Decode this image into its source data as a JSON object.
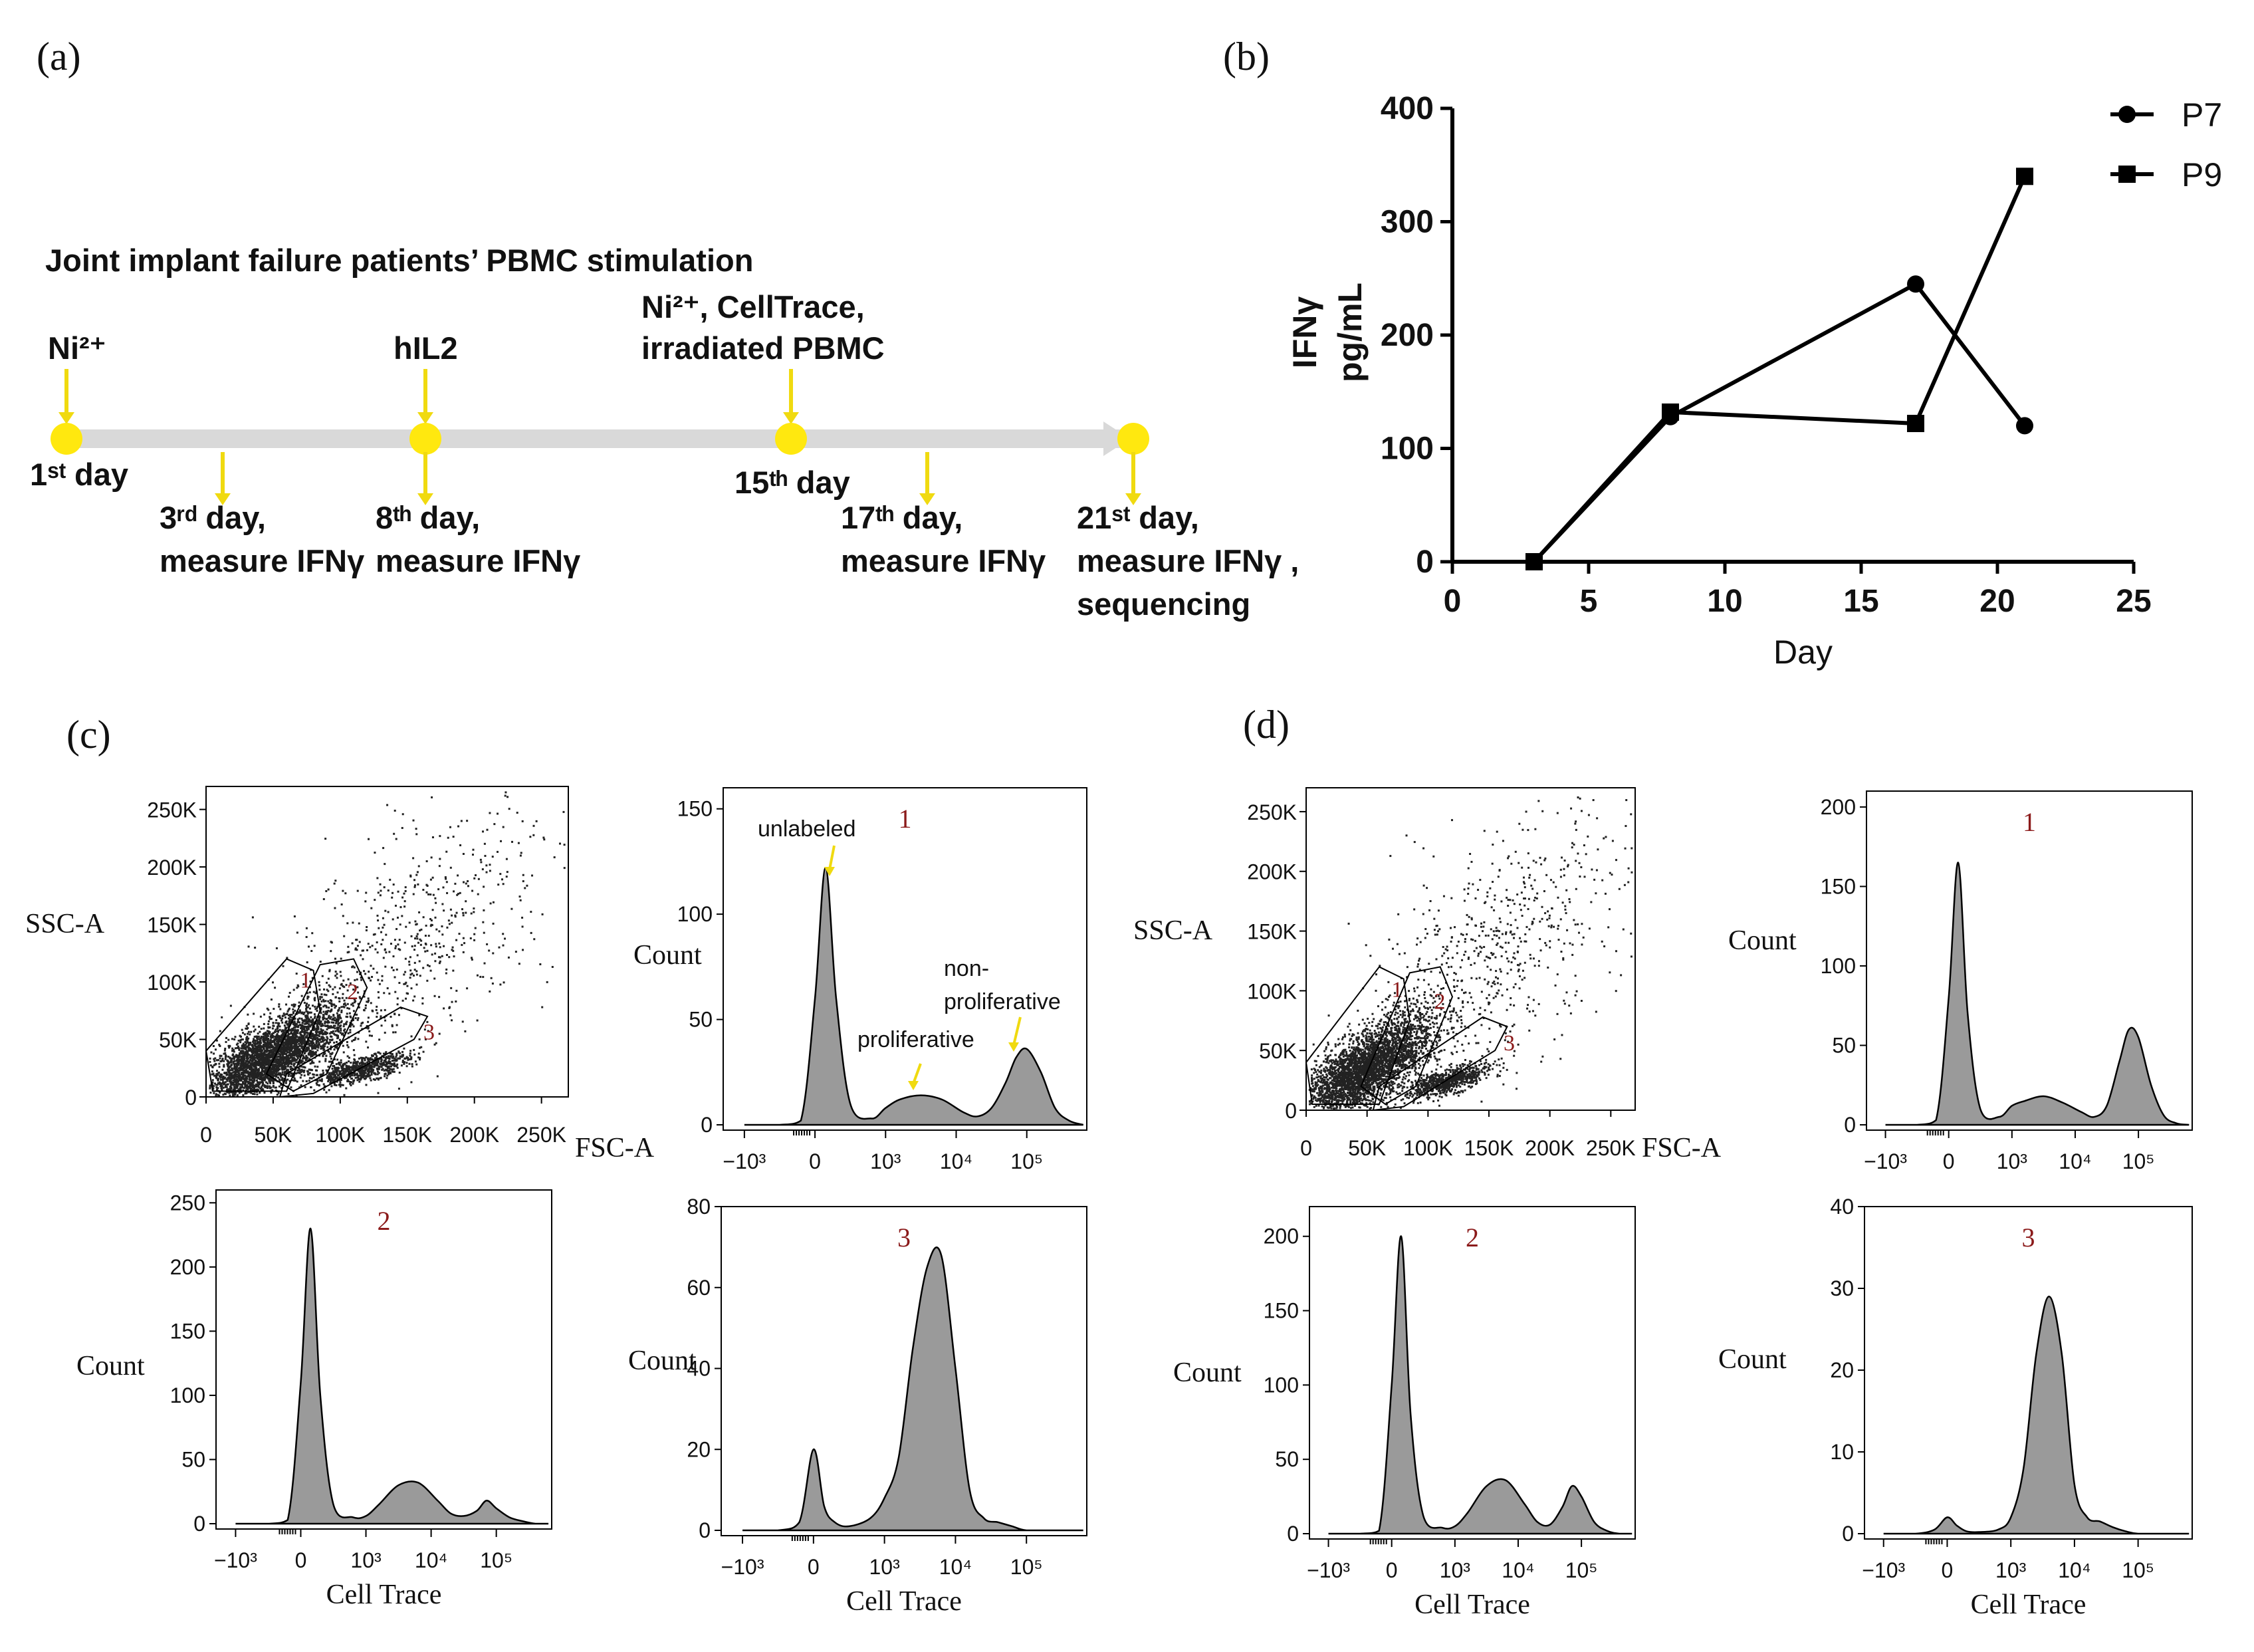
{
  "panel_labels": {
    "a": "(a)",
    "b": "(b)",
    "c": "(c)",
    "d": "(d)"
  },
  "colors": {
    "timeline_dot": "#ffe80f",
    "timeline_arrow": "#f0da10",
    "timeline_bar": "#d9d9d9",
    "hist_fill": "#9a9a9a",
    "gate_number": "#8b1a1a"
  },
  "timeline": {
    "title": "Joint implant failure patients’ PBMC stimulation",
    "events": [
      {
        "above": [
          "Ni²⁺"
        ],
        "below": [
          "1ˢᵗ day"
        ]
      },
      {
        "above": [],
        "below": [
          "3ʳᵈ day,",
          "measure IFNγ"
        ]
      },
      {
        "above": [
          "hIL2"
        ],
        "below": [
          "8ᵗʰ day,",
          "measure IFNγ"
        ]
      },
      {
        "above": [
          "Ni²⁺, CellTrace,",
          "irradiated PBMC"
        ],
        "below": [
          "15ᵗʰ day"
        ]
      },
      {
        "above": [],
        "below": [
          "17ᵗʰ day,",
          "measure IFNγ"
        ]
      },
      {
        "above": [],
        "below": [
          "21ˢᵗ day,",
          "measure IFNγ ,",
          "sequencing"
        ]
      }
    ]
  },
  "chart_data": [
    {
      "id": "b",
      "type": "line",
      "title": "",
      "xlabel": "Day",
      "ylabel": [
        "IFNγ",
        "pg/mL"
      ],
      "xlim": [
        0,
        25
      ],
      "ylim": [
        0,
        400
      ],
      "xticks": [
        0,
        5,
        10,
        15,
        20,
        25
      ],
      "yticks": [
        0,
        100,
        200,
        300,
        400
      ],
      "legend_position": "top-right",
      "series": [
        {
          "name": "P7",
          "marker": "circle",
          "x": [
            3,
            8,
            17,
            21
          ],
          "y": [
            0,
            128,
            245,
            120
          ]
        },
        {
          "name": "P9",
          "marker": "square",
          "x": [
            3,
            8,
            17,
            21
          ],
          "y": [
            0,
            132,
            122,
            340
          ]
        }
      ]
    },
    {
      "id": "c-scatter",
      "type": "scatter",
      "xlabel": "FSC-A",
      "ylabel": "SSC-A",
      "xticks": [
        "0",
        "50K",
        "100K",
        "150K",
        "200K",
        "250K"
      ],
      "yticks": [
        "0",
        "50K",
        "100K",
        "150K",
        "200K",
        "250K"
      ],
      "xlim": [
        0,
        270000
      ],
      "ylim": [
        0,
        270000
      ],
      "gates": [
        "1",
        "2",
        "3"
      ]
    },
    {
      "id": "c-hist1",
      "type": "area",
      "gate": "1",
      "ylabel": "Count",
      "xlabel": "",
      "ylim": [
        0,
        160
      ],
      "yticks": [
        0,
        50,
        100,
        150
      ],
      "xticks": [
        "−10³",
        "0",
        "10³",
        "10⁴",
        "10⁵"
      ],
      "x": [
        -1,
        -0.5,
        -0.2,
        0,
        0.15,
        0.3,
        0.5,
        0.8,
        1.0,
        1.2,
        1.5,
        1.8,
        2.1,
        2.3,
        2.5,
        2.7,
        2.85,
        3.0,
        3.2,
        3.4,
        3.6,
        3.8
      ],
      "y": [
        0,
        0,
        2,
        60,
        122,
        60,
        10,
        3,
        8,
        12,
        14,
        12,
        6,
        4,
        8,
        20,
        32,
        36,
        25,
        8,
        2,
        0
      ],
      "annotations": [
        "unlabeled",
        "proliferative",
        "non-",
        "proliferative"
      ]
    },
    {
      "id": "c-hist2",
      "type": "area",
      "gate": "2",
      "ylabel": "Count",
      "xlabel": "Cell Trace",
      "ylim": [
        0,
        260
      ],
      "yticks": [
        0,
        50,
        100,
        150,
        200,
        250
      ],
      "xticks": [
        "−10³",
        "0",
        "10³",
        "10⁴",
        "10⁵"
      ],
      "x": [
        -1,
        -0.5,
        -0.2,
        0,
        0.15,
        0.3,
        0.5,
        0.8,
        1.0,
        1.2,
        1.5,
        1.8,
        2.1,
        2.3,
        2.5,
        2.7,
        2.85,
        3.0,
        3.2,
        3.4,
        3.6,
        3.8
      ],
      "y": [
        0,
        0,
        3,
        110,
        230,
        100,
        15,
        5,
        6,
        15,
        30,
        32,
        18,
        8,
        6,
        10,
        18,
        12,
        5,
        2,
        0,
        0
      ]
    },
    {
      "id": "c-hist3",
      "type": "area",
      "gate": "3",
      "ylabel": "Count",
      "xlabel": "Cell Trace",
      "ylim": [
        0,
        80
      ],
      "yticks": [
        0,
        20,
        40,
        60,
        80
      ],
      "xticks": [
        "−10³",
        "0",
        "10³",
        "10⁴",
        "10⁵"
      ],
      "x": [
        -1,
        -0.5,
        -0.2,
        0,
        0.15,
        0.3,
        0.5,
        0.8,
        1.0,
        1.2,
        1.4,
        1.6,
        1.8,
        2.0,
        2.2,
        2.4,
        2.6,
        2.8,
        3.0,
        3.4,
        3.8
      ],
      "y": [
        0,
        0,
        2,
        20,
        6,
        2,
        1,
        3,
        8,
        18,
        45,
        65,
        68,
        40,
        10,
        3,
        2,
        1,
        0,
        0,
        0
      ]
    },
    {
      "id": "d-scatter",
      "type": "scatter",
      "xlabel": "FSC-A",
      "ylabel": "SSC-A",
      "xticks": [
        "0",
        "50K",
        "100K",
        "150K",
        "200K",
        "250K"
      ],
      "yticks": [
        "0",
        "50K",
        "100K",
        "150K",
        "200K",
        "250K"
      ],
      "xlim": [
        0,
        270000
      ],
      "ylim": [
        0,
        270000
      ],
      "gates": [
        "1",
        "2",
        "3"
      ]
    },
    {
      "id": "d-hist1",
      "type": "area",
      "gate": "1",
      "ylabel": "Count",
      "xlabel": "",
      "ylim": [
        0,
        210
      ],
      "yticks": [
        0,
        50,
        100,
        150,
        200
      ],
      "xticks": [
        "−10³",
        "0",
        "10³",
        "10⁴",
        "10⁵"
      ],
      "x": [
        -1,
        -0.5,
        -0.2,
        0,
        0.15,
        0.3,
        0.5,
        0.8,
        1.0,
        1.2,
        1.5,
        1.8,
        2.1,
        2.3,
        2.5,
        2.7,
        2.85,
        3.0,
        3.2,
        3.4,
        3.6,
        3.8
      ],
      "y": [
        0,
        0,
        3,
        80,
        165,
        70,
        10,
        5,
        12,
        15,
        18,
        14,
        8,
        5,
        12,
        40,
        60,
        55,
        25,
        6,
        1,
        0
      ]
    },
    {
      "id": "d-hist2",
      "type": "area",
      "gate": "2",
      "ylabel": "Count",
      "xlabel": "Cell Trace",
      "ylim": [
        0,
        220
      ],
      "yticks": [
        0,
        50,
        100,
        150,
        200
      ],
      "xticks": [
        "−10³",
        "0",
        "10³",
        "10⁴",
        "10⁵"
      ],
      "x": [
        -1,
        -0.5,
        -0.2,
        0,
        0.15,
        0.3,
        0.5,
        0.8,
        1.0,
        1.2,
        1.5,
        1.8,
        2.1,
        2.3,
        2.5,
        2.7,
        2.85,
        3.0,
        3.2,
        3.4,
        3.6,
        3.8
      ],
      "y": [
        0,
        0,
        2,
        100,
        200,
        80,
        12,
        4,
        5,
        14,
        32,
        36,
        20,
        8,
        6,
        18,
        32,
        25,
        8,
        2,
        0,
        0
      ]
    },
    {
      "id": "d-hist3",
      "type": "area",
      "gate": "3",
      "ylabel": "Count",
      "xlabel": "Cell Trace",
      "ylim": [
        0,
        40
      ],
      "yticks": [
        0,
        10,
        20,
        30,
        40
      ],
      "xticks": [
        "−10³",
        "0",
        "10³",
        "10⁴",
        "10⁵"
      ],
      "x": [
        -1,
        -0.5,
        -0.2,
        0,
        0.15,
        0.3,
        0.5,
        0.8,
        1.0,
        1.2,
        1.4,
        1.6,
        1.8,
        2.0,
        2.2,
        2.4,
        2.6,
        2.8,
        3.0,
        3.4,
        3.8
      ],
      "y": [
        0,
        0,
        0.5,
        2,
        1,
        0.3,
        0.2,
        0.5,
        2,
        8,
        22,
        29,
        22,
        6,
        2,
        1.5,
        0.8,
        0.3,
        0,
        0,
        0
      ]
    }
  ]
}
